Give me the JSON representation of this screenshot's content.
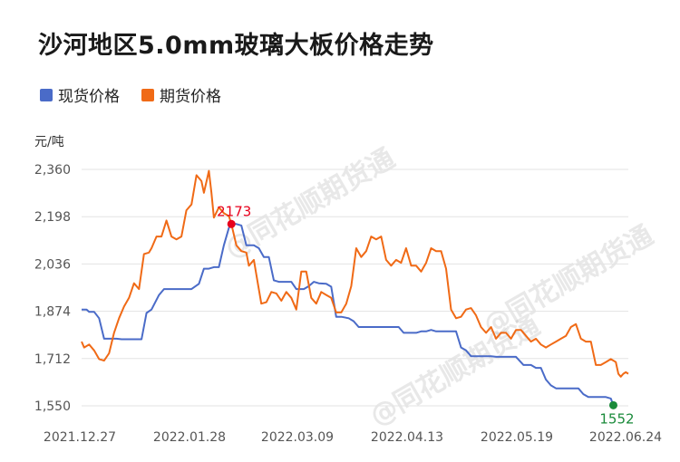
{
  "title": "沙河地区5.0mm玻璃大板价格走势",
  "unit": "元/吨",
  "watermark": "@同花顺期货通",
  "chart_data": {
    "type": "line",
    "title": "沙河地区5.0mm玻璃大板价格走势",
    "ylabel": "元/吨",
    "ylim": [
      1550,
      2360
    ],
    "yticks": [
      "1,550",
      "1,712",
      "1,874",
      "2,036",
      "2,198",
      "2,360"
    ],
    "ytick_values": [
      1550,
      1712,
      1874,
      2036,
      2198,
      2360
    ],
    "xticks": [
      "2021.12.27",
      "2022.01.28",
      "2022.03.09",
      "2022.04.13",
      "2022.05.19",
      "2022.06.24"
    ],
    "legend_position": "top-left",
    "grid": true,
    "annotations": [
      {
        "text": "2173",
        "series": "期货价格",
        "x": "2022.02.07",
        "y": 2173,
        "color": "#e8001c"
      },
      {
        "text": "1552",
        "series": "现货价格",
        "x": "2022.06.24",
        "y": 1552,
        "color": "#1a8a3a"
      }
    ],
    "series": [
      {
        "name": "现货价格",
        "color": "#4a6bc8",
        "points": [
          [
            0,
            1880
          ],
          [
            2,
            1880
          ],
          [
            3,
            1872
          ],
          [
            5,
            1872
          ],
          [
            7,
            1850
          ],
          [
            9,
            1780
          ],
          [
            14,
            1780
          ],
          [
            16,
            1778
          ],
          [
            24,
            1778
          ],
          [
            26,
            1868
          ],
          [
            28,
            1880
          ],
          [
            31,
            1930
          ],
          [
            33,
            1950
          ],
          [
            40,
            1950
          ],
          [
            44,
            1950
          ],
          [
            47,
            1968
          ],
          [
            49,
            2020
          ],
          [
            51,
            2020
          ],
          [
            53,
            2025
          ],
          [
            55,
            2025
          ],
          [
            57,
            2100
          ],
          [
            59,
            2160
          ],
          [
            60,
            2173
          ],
          [
            62,
            2173
          ],
          [
            64,
            2168
          ],
          [
            66,
            2100
          ],
          [
            69,
            2100
          ],
          [
            71,
            2090
          ],
          [
            73,
            2060
          ],
          [
            75,
            2060
          ],
          [
            77,
            1980
          ],
          [
            79,
            1975
          ],
          [
            84,
            1975
          ],
          [
            86,
            1950
          ],
          [
            89,
            1950
          ],
          [
            91,
            1960
          ],
          [
            93,
            1975
          ],
          [
            95,
            1970
          ],
          [
            98,
            1968
          ],
          [
            100,
            1958
          ],
          [
            102,
            1855
          ],
          [
            104,
            1855
          ],
          [
            107,
            1850
          ],
          [
            109,
            1840
          ],
          [
            111,
            1820
          ],
          [
            122,
            1820
          ],
          [
            127,
            1820
          ],
          [
            129,
            1800
          ],
          [
            134,
            1800
          ],
          [
            136,
            1805
          ],
          [
            138,
            1805
          ],
          [
            140,
            1810
          ],
          [
            142,
            1805
          ],
          [
            150,
            1805
          ],
          [
            152,
            1750
          ],
          [
            154,
            1740
          ],
          [
            156,
            1720
          ],
          [
            164,
            1720
          ],
          [
            166,
            1718
          ],
          [
            174,
            1718
          ],
          [
            177,
            1690
          ],
          [
            180,
            1690
          ],
          [
            182,
            1680
          ],
          [
            184,
            1680
          ],
          [
            186,
            1640
          ],
          [
            188,
            1620
          ],
          [
            190,
            1610
          ],
          [
            199,
            1610
          ],
          [
            201,
            1590
          ],
          [
            203,
            1580
          ],
          [
            206,
            1580
          ],
          [
            210,
            1580
          ],
          [
            212,
            1575
          ],
          [
            213,
            1552
          ]
        ]
      },
      {
        "name": "期货价格",
        "color": "#f06a16",
        "points": [
          [
            0,
            1770
          ],
          [
            1,
            1750
          ],
          [
            3,
            1760
          ],
          [
            5,
            1740
          ],
          [
            7,
            1710
          ],
          [
            9,
            1705
          ],
          [
            11,
            1730
          ],
          [
            13,
            1800
          ],
          [
            15,
            1850
          ],
          [
            17,
            1890
          ],
          [
            19,
            1920
          ],
          [
            21,
            1970
          ],
          [
            23,
            1950
          ],
          [
            25,
            2070
          ],
          [
            27,
            2075
          ],
          [
            28,
            2090
          ],
          [
            30,
            2130
          ],
          [
            32,
            2130
          ],
          [
            34,
            2185
          ],
          [
            36,
            2130
          ],
          [
            38,
            2120
          ],
          [
            40,
            2130
          ],
          [
            42,
            2220
          ],
          [
            44,
            2240
          ],
          [
            46,
            2340
          ],
          [
            48,
            2320
          ],
          [
            49,
            2280
          ],
          [
            51,
            2355
          ],
          [
            52,
            2280
          ],
          [
            53,
            2195
          ],
          [
            55,
            2230
          ],
          [
            57,
            2210
          ],
          [
            59,
            2200
          ],
          [
            60,
            2173
          ],
          [
            62,
            2100
          ],
          [
            64,
            2080
          ],
          [
            66,
            2075
          ],
          [
            67,
            2030
          ],
          [
            69,
            2050
          ],
          [
            70,
            2000
          ],
          [
            72,
            1900
          ],
          [
            74,
            1905
          ],
          [
            76,
            1940
          ],
          [
            78,
            1935
          ],
          [
            80,
            1910
          ],
          [
            82,
            1940
          ],
          [
            84,
            1920
          ],
          [
            86,
            1880
          ],
          [
            88,
            2010
          ],
          [
            90,
            2010
          ],
          [
            92,
            1920
          ],
          [
            94,
            1900
          ],
          [
            96,
            1940
          ],
          [
            98,
            1930
          ],
          [
            100,
            1920
          ],
          [
            102,
            1870
          ],
          [
            104,
            1870
          ],
          [
            106,
            1900
          ],
          [
            108,
            1960
          ],
          [
            110,
            2090
          ],
          [
            112,
            2060
          ],
          [
            114,
            2080
          ],
          [
            116,
            2130
          ],
          [
            118,
            2120
          ],
          [
            120,
            2130
          ],
          [
            122,
            2050
          ],
          [
            124,
            2030
          ],
          [
            126,
            2050
          ],
          [
            128,
            2040
          ],
          [
            130,
            2090
          ],
          [
            132,
            2030
          ],
          [
            134,
            2030
          ],
          [
            136,
            2010
          ],
          [
            138,
            2040
          ],
          [
            140,
            2090
          ],
          [
            142,
            2080
          ],
          [
            144,
            2080
          ],
          [
            146,
            2020
          ],
          [
            148,
            1880
          ],
          [
            150,
            1850
          ],
          [
            152,
            1855
          ],
          [
            154,
            1880
          ],
          [
            156,
            1885
          ],
          [
            158,
            1860
          ],
          [
            160,
            1820
          ],
          [
            162,
            1800
          ],
          [
            164,
            1820
          ],
          [
            166,
            1780
          ],
          [
            168,
            1800
          ],
          [
            170,
            1800
          ],
          [
            172,
            1780
          ],
          [
            174,
            1810
          ],
          [
            176,
            1810
          ],
          [
            178,
            1790
          ],
          [
            180,
            1770
          ],
          [
            182,
            1780
          ],
          [
            184,
            1760
          ],
          [
            186,
            1750
          ],
          [
            188,
            1760
          ],
          [
            190,
            1770
          ],
          [
            192,
            1780
          ],
          [
            194,
            1790
          ],
          [
            196,
            1820
          ],
          [
            198,
            1830
          ],
          [
            200,
            1780
          ],
          [
            202,
            1770
          ],
          [
            204,
            1770
          ],
          [
            206,
            1690
          ],
          [
            208,
            1690
          ],
          [
            210,
            1700
          ],
          [
            212,
            1710
          ],
          [
            214,
            1700
          ],
          [
            215,
            1660
          ],
          [
            216,
            1650
          ],
          [
            217,
            1660
          ],
          [
            218,
            1665
          ],
          [
            219,
            1660
          ]
        ]
      }
    ]
  }
}
